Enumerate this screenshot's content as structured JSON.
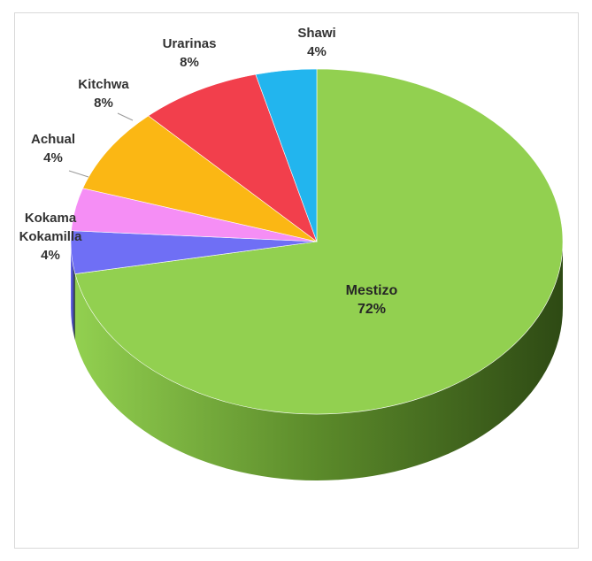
{
  "chart_data": {
    "type": "pie",
    "style": "3d",
    "start_angle": "top",
    "direction": "clockwise",
    "slices": [
      {
        "label": "Mestizo",
        "value": 72,
        "value_label": "72%",
        "color": "#92d050",
        "side_color": "#5b8a2a",
        "label_lines": [
          "Mestizo"
        ]
      },
      {
        "label": "Kokama Kokamilla",
        "value": 4,
        "value_label": "4%",
        "color": "#6f6ff5",
        "side_color": "#4646b0",
        "label_lines": [
          "Kokama",
          "Kokamilla"
        ]
      },
      {
        "label": "Achual",
        "value": 4,
        "value_label": "4%",
        "color": "#f58ef5",
        "side_color": "#b060b0",
        "label_lines": [
          "Achual"
        ]
      },
      {
        "label": "Kitchwa",
        "value": 8,
        "value_label": "8%",
        "color": "#fbb714",
        "side_color": "#c08a0a",
        "label_lines": [
          "Kitchwa"
        ]
      },
      {
        "label": "Urarinas",
        "value": 8,
        "value_label": "8%",
        "color": "#f23f4c",
        "side_color": "#b02a33",
        "label_lines": [
          "Urarinas"
        ]
      },
      {
        "label": "Shawi",
        "value": 4,
        "value_label": "4%",
        "color": "#22b5ee",
        "side_color": "#1580aa",
        "label_lines": [
          "Shawi"
        ]
      }
    ],
    "title": "",
    "legend": "none"
  }
}
